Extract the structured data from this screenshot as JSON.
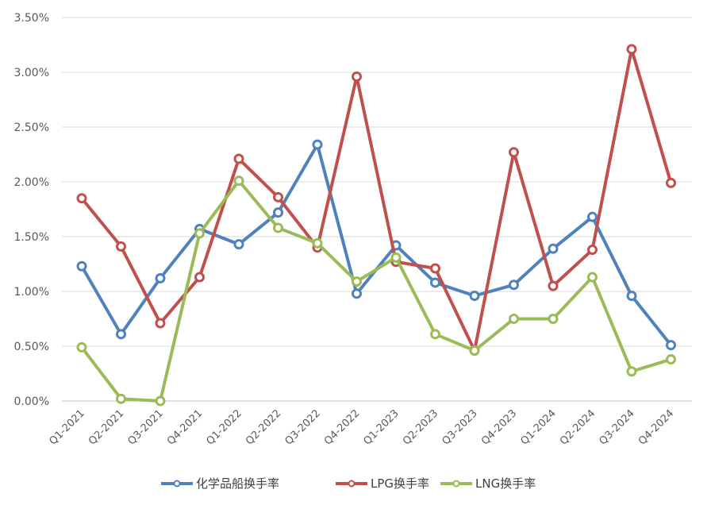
{
  "chart_data": {
    "type": "line",
    "categories": [
      "Q1-2021",
      "Q2-2021",
      "Q3-2021",
      "Q4-2021",
      "Q1-2022",
      "Q2-2022",
      "Q3-2022",
      "Q4-2022",
      "Q1-2023",
      "Q2-2023",
      "Q3-2023",
      "Q4-2023",
      "Q1-2024",
      "Q2-2024",
      "Q3-2024",
      "Q4-2024"
    ],
    "ylim": [
      0,
      3.5
    ],
    "y_ticks": [
      "0.00%",
      "0.50%",
      "1.00%",
      "1.50%",
      "2.00%",
      "2.50%",
      "3.00%",
      "3.50%"
    ],
    "y_unit": "%",
    "grid": true,
    "legend_position": "bottom",
    "series": [
      {
        "name": "化学品船换手率",
        "color": "#4f81bd",
        "values": [
          1.23,
          0.61,
          1.12,
          1.57,
          1.43,
          1.72,
          2.34,
          0.98,
          1.42,
          1.08,
          0.96,
          1.06,
          1.39,
          1.68,
          0.96,
          0.51
        ]
      },
      {
        "name": "LPG换手率",
        "color": "#c0504d",
        "values": [
          1.85,
          1.41,
          0.71,
          1.13,
          2.21,
          1.86,
          1.4,
          2.96,
          1.27,
          1.21,
          0.46,
          2.27,
          1.05,
          1.38,
          3.21,
          1.99
        ]
      },
      {
        "name": "LNG换手率",
        "color": "#9bbb59",
        "values": [
          0.49,
          0.02,
          0.0,
          1.53,
          2.01,
          1.58,
          1.44,
          1.09,
          1.31,
          0.61,
          0.46,
          0.75,
          0.75,
          1.13,
          0.27,
          0.38
        ]
      }
    ]
  }
}
